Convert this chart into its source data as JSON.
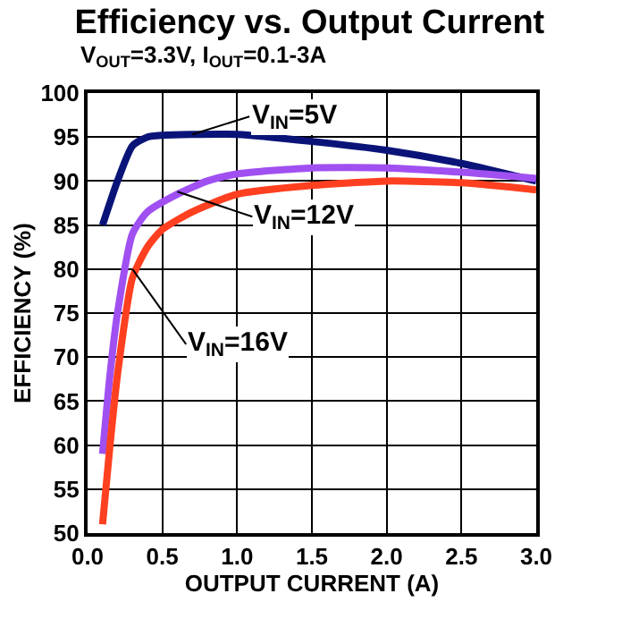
{
  "chart_data": {
    "type": "line",
    "title": "Efficiency vs. Output Current",
    "subtitle": "V$_{OUT}$=3.3V, I$_{OUT}$=0.1-3A",
    "xlabel": "OUTPUT CURRENT (A)",
    "ylabel": "EFFICIENCY (%)",
    "xlim": [
      0,
      3
    ],
    "xticks": [
      {
        "value": 0,
        "label": "0.0"
      },
      0.5,
      {
        "value": 1,
        "label": "1.0"
      },
      1.5,
      {
        "value": 2,
        "label": "2.0"
      },
      2.5,
      {
        "value": 3,
        "label": "3.0"
      }
    ],
    "ylim": [
      50,
      100
    ],
    "yticks": [
      50,
      55,
      60,
      65,
      70,
      75,
      80,
      85,
      90,
      95,
      100
    ],
    "grid": true,
    "marker": "none",
    "line_style": "solid",
    "series": [
      {
        "color": "#0a1478",
        "x": [
          0.1,
          0.2,
          0.3,
          0.4,
          0.5,
          0.7,
          1,
          1.5,
          2,
          2.5,
          3
        ],
        "values": [
          85,
          90,
          94,
          95,
          95.2,
          95.3,
          95.3,
          94.5,
          93.5,
          92,
          90
        ]
      },
      {
        "color": "#a050f0",
        "x": [
          0.1,
          0.15,
          0.2,
          0.3,
          0.4,
          0.6,
          0.8,
          1,
          1.5,
          2,
          2.5,
          3
        ],
        "values": [
          59,
          68,
          75,
          84,
          86.5,
          88.5,
          90,
          90.8,
          91.5,
          91.5,
          91,
          90.3
        ]
      },
      {
        "color": "#ff4020",
        "x": [
          0.1,
          0.15,
          0.2,
          0.3,
          0.4,
          0.5,
          0.7,
          1,
          1.5,
          2,
          2.5,
          3
        ],
        "values": [
          51,
          60,
          68,
          79,
          82.5,
          84.5,
          86.5,
          88.5,
          89.5,
          90,
          89.8,
          89
        ]
      }
    ],
    "annotations": [
      {
        "text": "V$_{IN}$=5V",
        "x": 0.7,
        "y": 95.3
      },
      {
        "text": "V$_{IN}$=12V",
        "x": 0.6,
        "y": 88.8
      },
      {
        "text": "V$_{IN}$=16V",
        "x": 0.3,
        "y": 80
      }
    ]
  }
}
